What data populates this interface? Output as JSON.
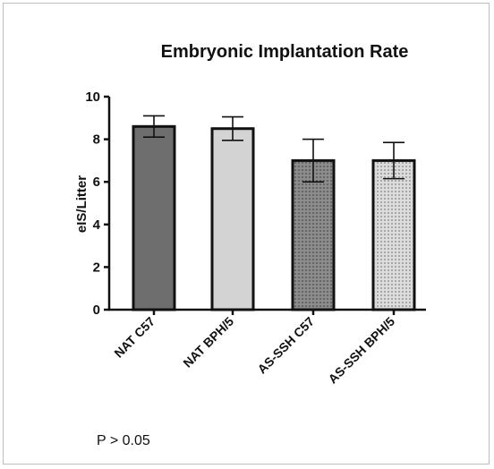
{
  "chart_data": {
    "type": "bar",
    "title": "Embryonic Implantation Rate",
    "xlabel": "",
    "ylabel": "eIS/Litter",
    "ylim": [
      0,
      10
    ],
    "yticks": [
      0,
      2,
      4,
      6,
      8,
      10
    ],
    "categories": [
      "NAT C57",
      "NAT BPH/5",
      "AS-SSH C57",
      "AS-SSH BPH/5"
    ],
    "values": [
      8.6,
      8.5,
      7.0,
      7.0
    ],
    "error": [
      0.5,
      0.55,
      1.0,
      0.85
    ],
    "bar_colors": [
      "#6e6e6e",
      "#d3d3d3",
      "#8c8c8c",
      "#dcdcdc"
    ],
    "bar_patterns": [
      "solid",
      "solid",
      "dots-dark",
      "dots-light"
    ],
    "annotation": "P > 0.05",
    "grid": false,
    "legend": "none"
  }
}
